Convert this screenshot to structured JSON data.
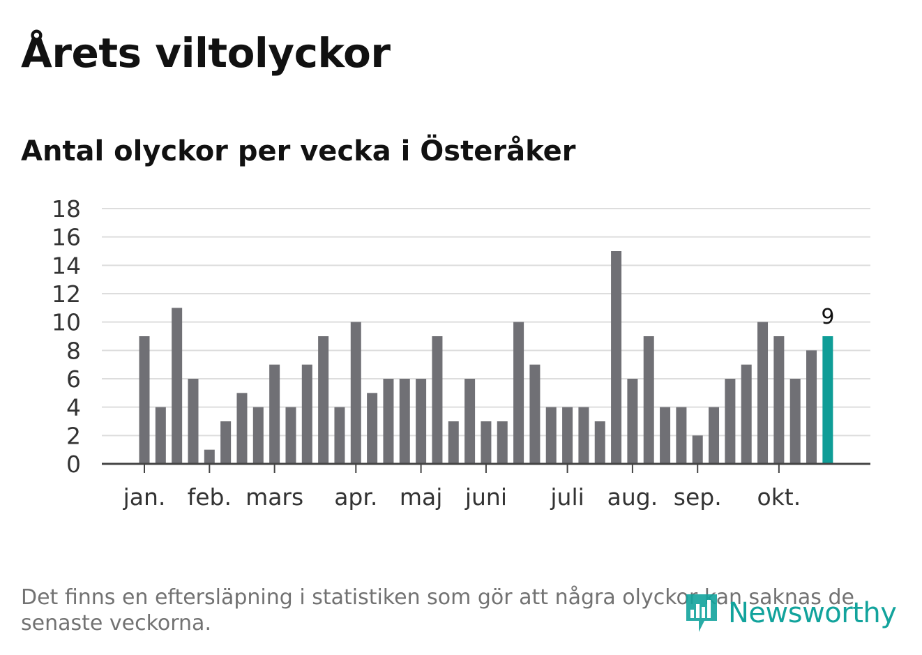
{
  "header": {
    "title": "Årets viltolyckor",
    "subtitle": "Antal olyckor per vecka i Österåker"
  },
  "footnote": "Det finns en eftersläpning i statistiken som gör att några olyckor kan saknas de senaste veckorna.",
  "logo": {
    "text": "Newsworthy",
    "icon": "bar-chart-bubble-icon"
  },
  "colors": {
    "bar": "#707075",
    "highlight": "#0f9d97",
    "grid": "#dddddd",
    "axis": "#444444",
    "text": "#333333"
  },
  "chart_data": {
    "type": "bar",
    "title": "Antal olyckor per vecka i Österåker",
    "xlabel": "",
    "ylabel": "",
    "ylim": [
      0,
      18
    ],
    "yticks": [
      0,
      2,
      4,
      6,
      8,
      10,
      12,
      14,
      16,
      18
    ],
    "grid": true,
    "weeks": [
      1,
      2,
      3,
      4,
      5,
      6,
      7,
      8,
      9,
      10,
      11,
      12,
      13,
      14,
      15,
      16,
      17,
      18,
      19,
      20,
      21,
      22,
      23,
      24,
      25,
      26,
      27,
      28,
      29,
      30,
      31,
      32,
      33,
      34,
      35,
      36,
      37,
      38,
      39,
      40,
      41,
      42,
      43
    ],
    "values": [
      9,
      4,
      11,
      6,
      1,
      3,
      5,
      4,
      7,
      4,
      7,
      9,
      4,
      10,
      5,
      6,
      6,
      6,
      9,
      3,
      6,
      3,
      3,
      10,
      7,
      4,
      4,
      4,
      3,
      15,
      6,
      9,
      4,
      4,
      2,
      4,
      6,
      7,
      10,
      9,
      6,
      8,
      9
    ],
    "highlight_index": 42,
    "highlight_label": "9",
    "month_labels": [
      {
        "label": "jan.",
        "week": 1
      },
      {
        "label": "feb.",
        "week": 5
      },
      {
        "label": "mars",
        "week": 9
      },
      {
        "label": "apr.",
        "week": 14
      },
      {
        "label": "maj",
        "week": 18
      },
      {
        "label": "juni",
        "week": 22
      },
      {
        "label": "juli",
        "week": 27
      },
      {
        "label": "aug.",
        "week": 31
      },
      {
        "label": "sep.",
        "week": 35
      },
      {
        "label": "okt.",
        "week": 40
      }
    ]
  }
}
